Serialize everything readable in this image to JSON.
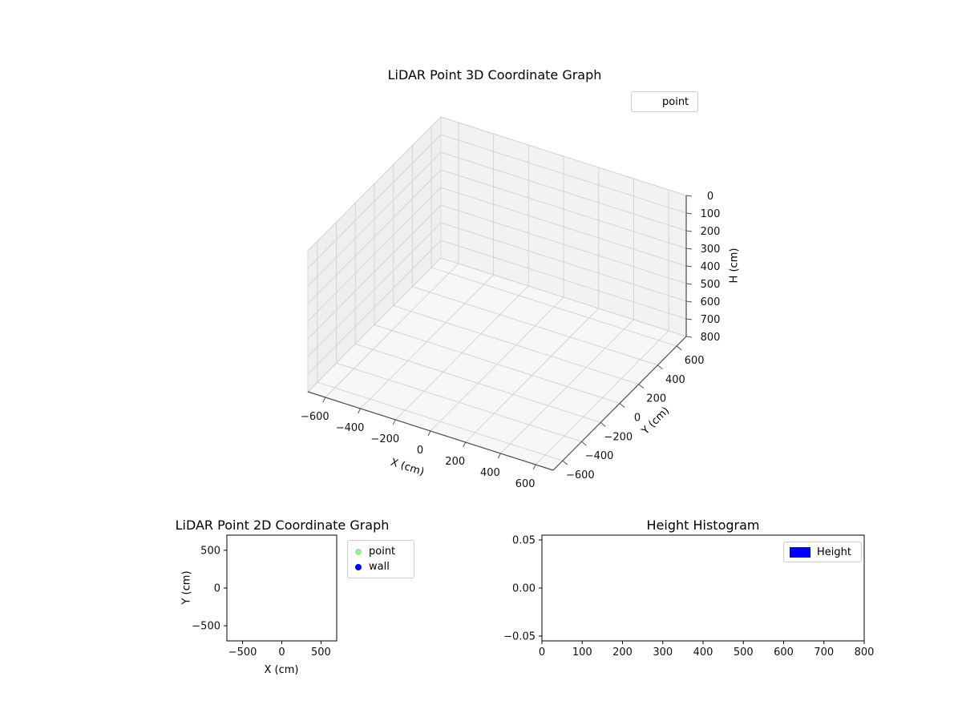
{
  "figure": {
    "background": "#ffffff"
  },
  "chart_data": [
    {
      "id": "plot3d",
      "type": "scatter",
      "projection": "3d",
      "title": "LiDAR Point 3D Coordinate Graph",
      "xlabel": "X (cm)",
      "ylabel": "Y (cm)",
      "zlabel": "H (cm)",
      "xlim": [
        -700,
        700
      ],
      "ylim": [
        -700,
        700
      ],
      "zlim": [
        0,
        800
      ],
      "zaxis_inverted": true,
      "grid": true,
      "xticks": [
        {
          "v": -600,
          "t": "−600"
        },
        {
          "v": -400,
          "t": "−400"
        },
        {
          "v": -200,
          "t": "−200"
        },
        {
          "v": 0,
          "t": "0"
        },
        {
          "v": 200,
          "t": "200"
        },
        {
          "v": 400,
          "t": "400"
        },
        {
          "v": 600,
          "t": "600"
        }
      ],
      "yticks": [
        {
          "v": -600,
          "t": "−600"
        },
        {
          "v": -400,
          "t": "−400"
        },
        {
          "v": -200,
          "t": "−200"
        },
        {
          "v": 0,
          "t": "0"
        },
        {
          "v": 200,
          "t": "200"
        },
        {
          "v": 400,
          "t": "400"
        },
        {
          "v": 600,
          "t": "600"
        }
      ],
      "zticks": [
        {
          "v": 0,
          "t": "0"
        },
        {
          "v": 100,
          "t": "100"
        },
        {
          "v": 200,
          "t": "200"
        },
        {
          "v": 300,
          "t": "300"
        },
        {
          "v": 400,
          "t": "400"
        },
        {
          "v": 500,
          "t": "500"
        },
        {
          "v": 600,
          "t": "600"
        },
        {
          "v": 700,
          "t": "700"
        },
        {
          "v": 800,
          "t": "800"
        }
      ],
      "legend": {
        "position": "upper-right",
        "entries": [
          {
            "label": "point",
            "marker_color": "none"
          }
        ]
      },
      "series": [
        {
          "name": "point",
          "points": []
        }
      ]
    },
    {
      "id": "plot2d",
      "type": "scatter",
      "title": "LiDAR Point 2D Coordinate Graph",
      "xlabel": "X (cm)",
      "ylabel": "Y (cm)",
      "xlim": [
        -700,
        700
      ],
      "ylim": [
        -700,
        700
      ],
      "grid": false,
      "xticks": [
        {
          "v": -500,
          "t": "−500"
        },
        {
          "v": 0,
          "t": "0"
        },
        {
          "v": 500,
          "t": "500"
        }
      ],
      "yticks": [
        {
          "v": 500,
          "t": "500"
        },
        {
          "v": 0,
          "t": "0"
        },
        {
          "v": -500,
          "t": "−500"
        }
      ],
      "legend": {
        "position": "outside-right",
        "entries": [
          {
            "label": "point",
            "marker": "circle",
            "marker_color": "#90ee90"
          },
          {
            "label": "wall",
            "marker": "circle",
            "marker_color": "#0000ff"
          }
        ]
      },
      "series": [
        {
          "name": "point",
          "points": []
        },
        {
          "name": "wall",
          "points": []
        }
      ]
    },
    {
      "id": "hist",
      "type": "bar",
      "title": "Height Histogram",
      "xlabel": "",
      "ylabel": "",
      "xlim": [
        0,
        800
      ],
      "ylim": [
        -0.055,
        0.055
      ],
      "grid": false,
      "xticks": [
        {
          "v": 0,
          "t": "0"
        },
        {
          "v": 100,
          "t": "100"
        },
        {
          "v": 200,
          "t": "200"
        },
        {
          "v": 300,
          "t": "300"
        },
        {
          "v": 400,
          "t": "400"
        },
        {
          "v": 500,
          "t": "500"
        },
        {
          "v": 600,
          "t": "600"
        },
        {
          "v": 700,
          "t": "700"
        },
        {
          "v": 800,
          "t": "800"
        }
      ],
      "yticks": [
        {
          "v": 0.05,
          "t": "0.05"
        },
        {
          "v": 0,
          "t": "0.00"
        },
        {
          "v": -0.05,
          "t": "−0.05"
        }
      ],
      "legend": {
        "position": "upper-right",
        "entries": [
          {
            "label": "Height",
            "marker": "patch",
            "marker_color": "#0000ff"
          }
        ]
      },
      "values": []
    }
  ]
}
